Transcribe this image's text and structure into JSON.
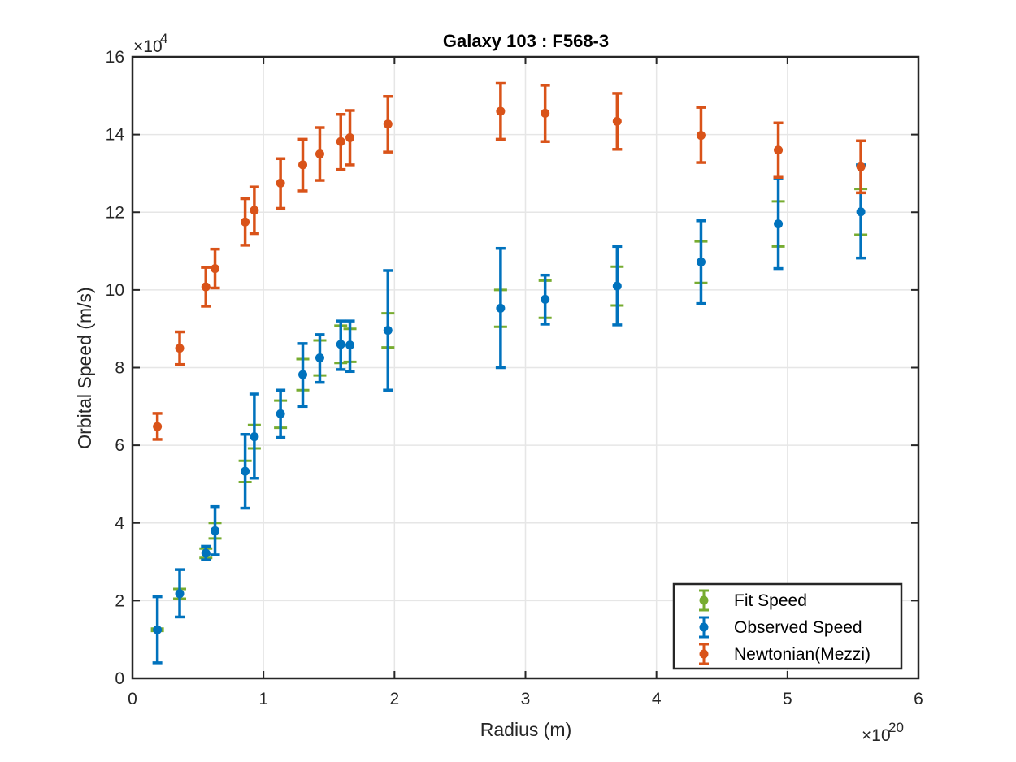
{
  "chart_data": {
    "type": "scatter",
    "title": "Galaxy 103 : F568-3",
    "xlabel": "Radius (m)",
    "ylabel": "Orbital Speed (m/s)",
    "x_exponent_label": "×10",
    "x_exponent_power": "20",
    "y_exponent_label": "×10",
    "y_exponent_power": "4",
    "xlim": [
      0,
      6
    ],
    "ylim": [
      0,
      16
    ],
    "x_scale_note": "x values shown in units of 1e20 m",
    "y_scale_note": "y values shown in units of 1e4 m/s",
    "xticks": [
      "0",
      "1",
      "2",
      "3",
      "4",
      "5",
      "6"
    ],
    "yticks": [
      "0",
      "2",
      "4",
      "6",
      "8",
      "10",
      "12",
      "14",
      "16"
    ],
    "grid": true,
    "legend_position": "bottom-right",
    "series": [
      {
        "name": "Fit Speed",
        "color": "#77ac30",
        "x": [
          0.19,
          0.36,
          0.56,
          0.63,
          0.86,
          0.93,
          1.13,
          1.3,
          1.43,
          1.59,
          1.66,
          1.95,
          2.81,
          3.15,
          3.7,
          4.34,
          4.93,
          5.56
        ],
        "y": [
          1.25,
          2.18,
          3.22,
          3.8,
          5.33,
          6.22,
          6.81,
          7.82,
          8.25,
          8.6,
          8.58,
          8.96,
          9.53,
          9.76,
          10.1,
          10.72,
          11.7,
          12.01
        ],
        "err_low": [
          1.22,
          2.05,
          3.1,
          3.6,
          5.05,
          5.92,
          6.45,
          7.42,
          7.8,
          8.12,
          8.15,
          8.52,
          9.05,
          9.28,
          9.6,
          10.18,
          11.12,
          11.42
        ],
        "err_high": [
          1.28,
          2.3,
          3.34,
          4.0,
          5.6,
          6.52,
          7.15,
          8.22,
          8.7,
          9.08,
          9.0,
          9.4,
          10.0,
          10.24,
          10.6,
          11.25,
          12.28,
          12.6
        ]
      },
      {
        "name": "Observed Speed",
        "color": "#0072bd",
        "x": [
          0.19,
          0.36,
          0.56,
          0.63,
          0.86,
          0.93,
          1.13,
          1.3,
          1.43,
          1.59,
          1.66,
          1.95,
          2.81,
          3.15,
          3.7,
          4.34,
          4.93,
          5.56
        ],
        "y": [
          1.25,
          2.18,
          3.22,
          3.8,
          5.33,
          6.22,
          6.81,
          7.82,
          8.25,
          8.6,
          8.58,
          8.96,
          9.53,
          9.76,
          10.1,
          10.72,
          11.7,
          12.01
        ],
        "err_low": [
          0.4,
          1.58,
          3.05,
          3.18,
          4.38,
          5.15,
          6.2,
          7.0,
          7.62,
          7.95,
          7.9,
          7.42,
          8.0,
          9.12,
          9.1,
          9.65,
          10.55,
          10.82
        ],
        "err_high": [
          2.1,
          2.8,
          3.4,
          4.42,
          6.28,
          7.32,
          7.42,
          8.62,
          8.85,
          9.2,
          9.2,
          10.5,
          11.07,
          10.38,
          11.12,
          11.78,
          12.88,
          13.22
        ]
      },
      {
        "name": "Newtonian(Mezzi)",
        "color": "#d95319",
        "x": [
          0.19,
          0.36,
          0.56,
          0.63,
          0.86,
          0.93,
          1.13,
          1.3,
          1.43,
          1.59,
          1.66,
          1.95,
          2.81,
          3.15,
          3.7,
          4.34,
          4.93,
          5.56
        ],
        "y": [
          6.48,
          8.5,
          10.08,
          10.55,
          11.75,
          12.05,
          12.75,
          13.22,
          13.5,
          13.82,
          13.92,
          14.27,
          14.6,
          14.55,
          14.34,
          13.98,
          13.6,
          13.17
        ],
        "err_low": [
          6.15,
          8.08,
          9.58,
          10.05,
          11.15,
          11.45,
          12.1,
          12.55,
          12.82,
          13.1,
          13.22,
          13.55,
          13.88,
          13.82,
          13.62,
          13.28,
          12.9,
          12.5
        ],
        "err_high": [
          6.82,
          8.92,
          10.58,
          11.05,
          12.35,
          12.65,
          13.38,
          13.88,
          14.18,
          14.52,
          14.62,
          14.98,
          15.32,
          15.27,
          15.06,
          14.7,
          14.3,
          13.84
        ]
      }
    ]
  }
}
